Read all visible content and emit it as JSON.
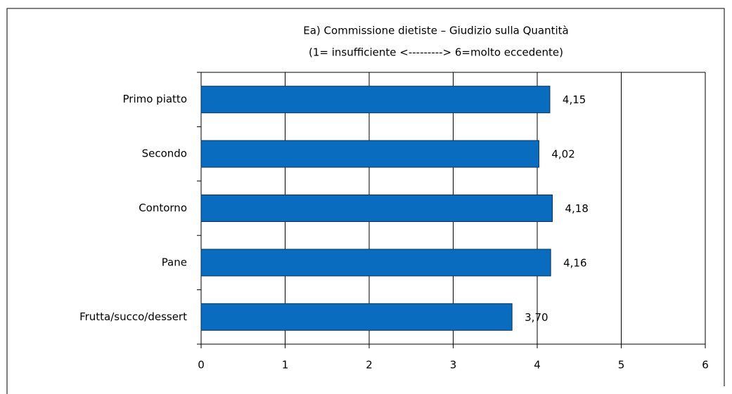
{
  "chart_data": {
    "type": "hbar",
    "title": "Ea) Commissione dietiste –  Giudizio sulla Quantità",
    "subtitle": "(1= insufficiente <---------> 6=molto eccedente)",
    "categories": [
      "Primo piatto",
      "Secondo",
      "Contorno",
      "Pane",
      "Frutta/succo/dessert"
    ],
    "values": [
      4.15,
      4.02,
      4.18,
      4.16,
      3.7
    ],
    "value_labels": [
      "4,15",
      "4,02",
      "4,18",
      "4,16",
      "3,70"
    ],
    "color": "#0a6cbf",
    "xlim": [
      0,
      6
    ],
    "xticks": [
      0,
      1,
      2,
      3,
      4,
      5,
      6
    ],
    "grid": true
  }
}
